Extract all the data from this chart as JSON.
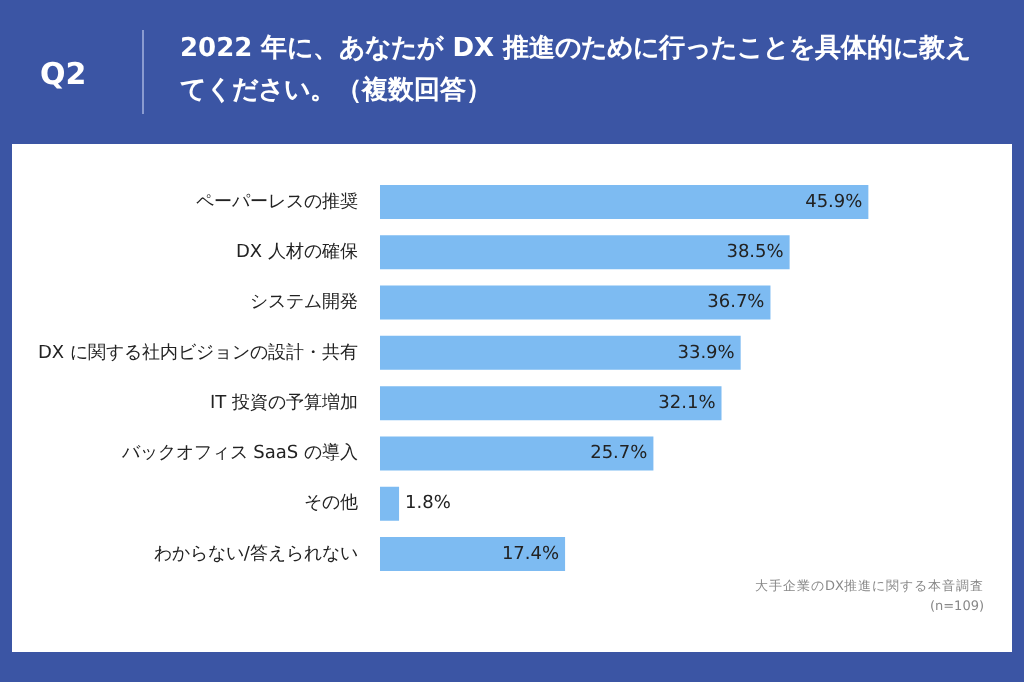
{
  "chart_data": {
    "type": "bar",
    "orientation": "horizontal",
    "title": "2022 年に、あなたが DX 推進のために行ったことを具体的に教えてください。（複数回答）",
    "categories": [
      "ペーパーレスの推奨",
      "DX 人材の確保",
      "システム開発",
      "DX に関する社内ビジョンの設計・共有",
      "IT 投資の予算増加",
      "バックオフィス SaaS の導入",
      "その他",
      "わからない/答えられない"
    ],
    "values": [
      45.9,
      38.5,
      36.7,
      33.9,
      32.1,
      25.7,
      1.8,
      17.4
    ],
    "value_labels": [
      "45.9%",
      "38.5%",
      "36.7%",
      "33.9%",
      "32.1%",
      "25.7%",
      "1.8%",
      "17.4%"
    ],
    "color": "#7dbbf2",
    "annotations": [
      "Q2",
      "大手企業のDX推進に関する本音調査",
      "(n=109)"
    ]
  }
}
